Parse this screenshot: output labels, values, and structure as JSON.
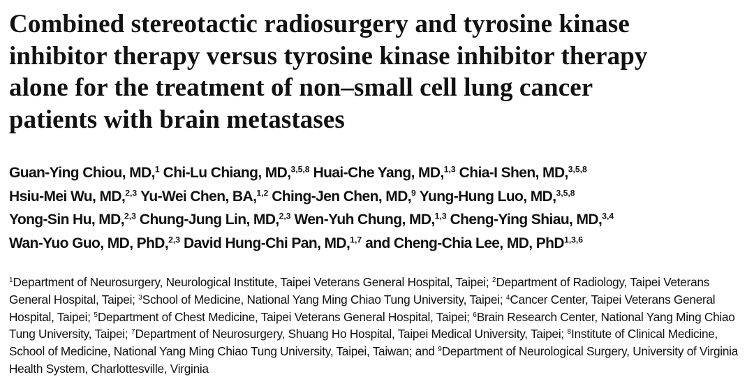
{
  "title": [
    "Combined stereotactic radiosurgery and tyrosine kinase",
    "inhibitor therapy versus tyrosine kinase inhibitor therapy",
    "alone for the treatment of non–small cell lung cancer",
    "patients with brain metastases"
  ],
  "authors": [
    [
      {
        "name": "Guan-Ying Chiou, MD,",
        "sup": "1"
      },
      {
        "name": "Chi-Lu Chiang, MD,",
        "sup": "3,5,8"
      },
      {
        "name": "Huai-Che Yang, MD,",
        "sup": "1,3"
      },
      {
        "name": "Chia-I Shen, MD,",
        "sup": "3,5,8"
      }
    ],
    [
      {
        "name": "Hsiu-Mei Wu, MD,",
        "sup": "2,3"
      },
      {
        "name": "Yu-Wei Chen, BA,",
        "sup": "1,2"
      },
      {
        "name": "Ching-Jen Chen, MD,",
        "sup": "9"
      },
      {
        "name": "Yung-Hung Luo, MD,",
        "sup": "3,5,8"
      }
    ],
    [
      {
        "name": "Yong-Sin Hu, MD,",
        "sup": "2,3"
      },
      {
        "name": "Chung-Jung Lin, MD,",
        "sup": "2,3"
      },
      {
        "name": "Wen-Yuh Chung, MD,",
        "sup": "1,3"
      },
      {
        "name": "Cheng-Ying Shiau, MD,",
        "sup": "3,4"
      }
    ],
    [
      {
        "name": "Wan-Yuo Guo, MD, PhD,",
        "sup": "2,3"
      },
      {
        "name": "David Hung-Chi Pan, MD,",
        "sup": "1,7"
      },
      {
        "name": "and Cheng-Chia Lee, MD, PhD",
        "sup": "1,3,6"
      }
    ]
  ],
  "affiliations": [
    {
      "num": "1",
      "text": "Department of Neurosurgery, Neurological Institute, Taipei Veterans General Hospital, Taipei;"
    },
    {
      "num": "2",
      "text": "Department of Radiology, Taipei Veterans General Hospital, Taipei;"
    },
    {
      "num": "3",
      "text": "School of Medicine, National Yang Ming Chiao Tung University, Taipei;"
    },
    {
      "num": "4",
      "text": "Cancer Center, Taipei Veterans General Hospital, Taipei;"
    },
    {
      "num": "5",
      "text": "Department of Chest Medicine, Taipei Veterans General Hospital, Taipei;"
    },
    {
      "num": "6",
      "text": "Brain Research Center, National Yang Ming Chiao Tung University, Taipei;"
    },
    {
      "num": "7",
      "text": "Department of Neurosurgery, Shuang Ho Hospital, Taipei Medical University, Taipei;"
    },
    {
      "num": "8",
      "text": "Institute of Clinical Medicine, School of Medicine, National Yang Ming Chiao Tung University, Taipei, Taiwan; and"
    },
    {
      "num": "9",
      "text": "Department of Neurological Surgery, University of Virginia Health System, Charlottesville, Virginia"
    }
  ]
}
